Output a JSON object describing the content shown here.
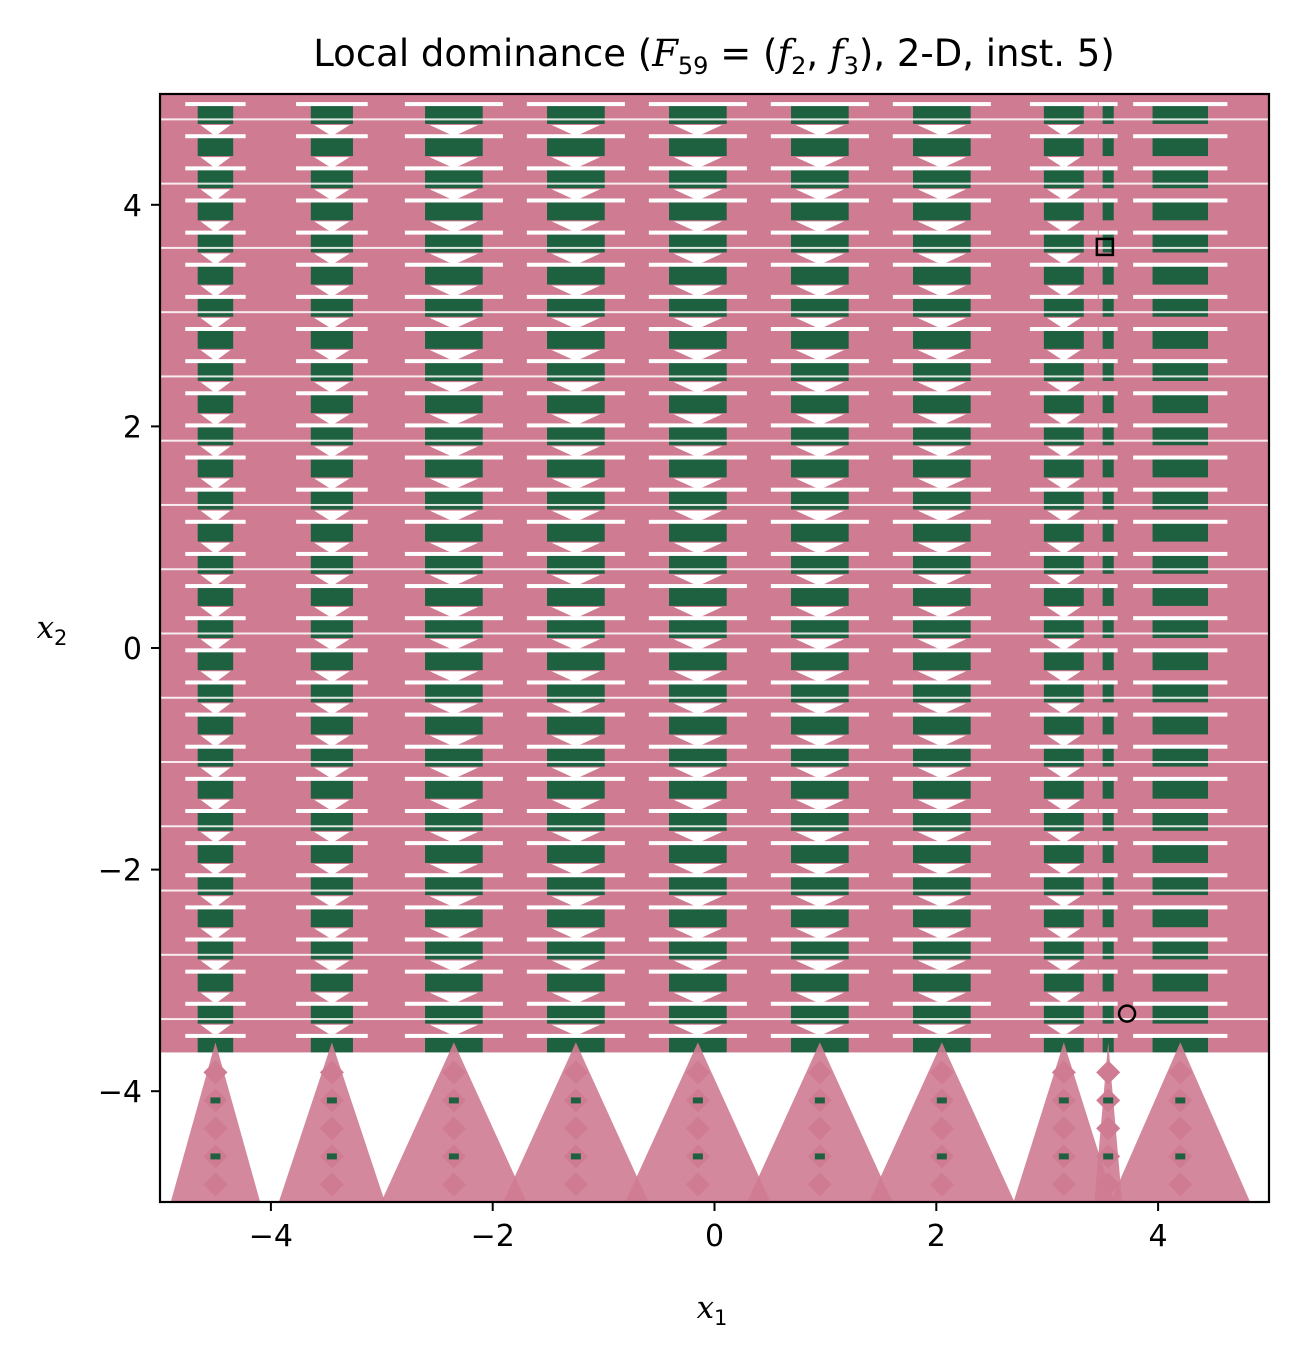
{
  "chart_data": {
    "type": "heatmap",
    "title": "Local dominance (F59 = (f2, f3), 2-D, inst. 5)",
    "title_parts": {
      "prefix": "Local dominance (",
      "F": "F",
      "F_sub": "59",
      "eq": " = (",
      "f_a": "f",
      "f_a_sub": "2",
      "comma": ", ",
      "f_b": "f",
      "f_b_sub": "3",
      "suffix": "), 2-D, inst. 5)"
    },
    "xlabel": {
      "base": "x",
      "sub": "1"
    },
    "ylabel": {
      "base": "x",
      "sub": "2"
    },
    "xlim": [
      -5,
      5
    ],
    "ylim": [
      -5,
      5
    ],
    "xticks": [
      -4,
      -2,
      0,
      2,
      4
    ],
    "yticks": [
      -4,
      -2,
      0,
      2,
      4
    ],
    "xtick_labels": [
      "−4",
      "−2",
      "0",
      "2",
      "4"
    ],
    "ytick_labels": [
      "−4",
      "−2",
      "0",
      "2",
      "4"
    ],
    "grid": false,
    "colors": {
      "dominated_region": "#cf7b92",
      "local_optimum_basin": "#1e6141",
      "background": "#ffffff",
      "marker": "#000000"
    },
    "band_x_centers": [
      -4.5,
      -3.45,
      -2.35,
      -1.25,
      -0.15,
      0.95,
      2.05,
      3.15,
      3.55,
      4.2
    ],
    "band_widths": [
      0.32,
      0.38,
      0.52,
      0.52,
      0.52,
      0.52,
      0.52,
      0.36,
      0.1,
      0.5
    ],
    "stripe_y_start": 4.9,
    "stripe_spacing": 0.29,
    "lower_white_boundary_y": -3.65,
    "markers": [
      {
        "shape": "square",
        "x": 3.52,
        "y": 3.62
      },
      {
        "shape": "circle",
        "x": 3.72,
        "y": -3.3
      }
    ]
  }
}
